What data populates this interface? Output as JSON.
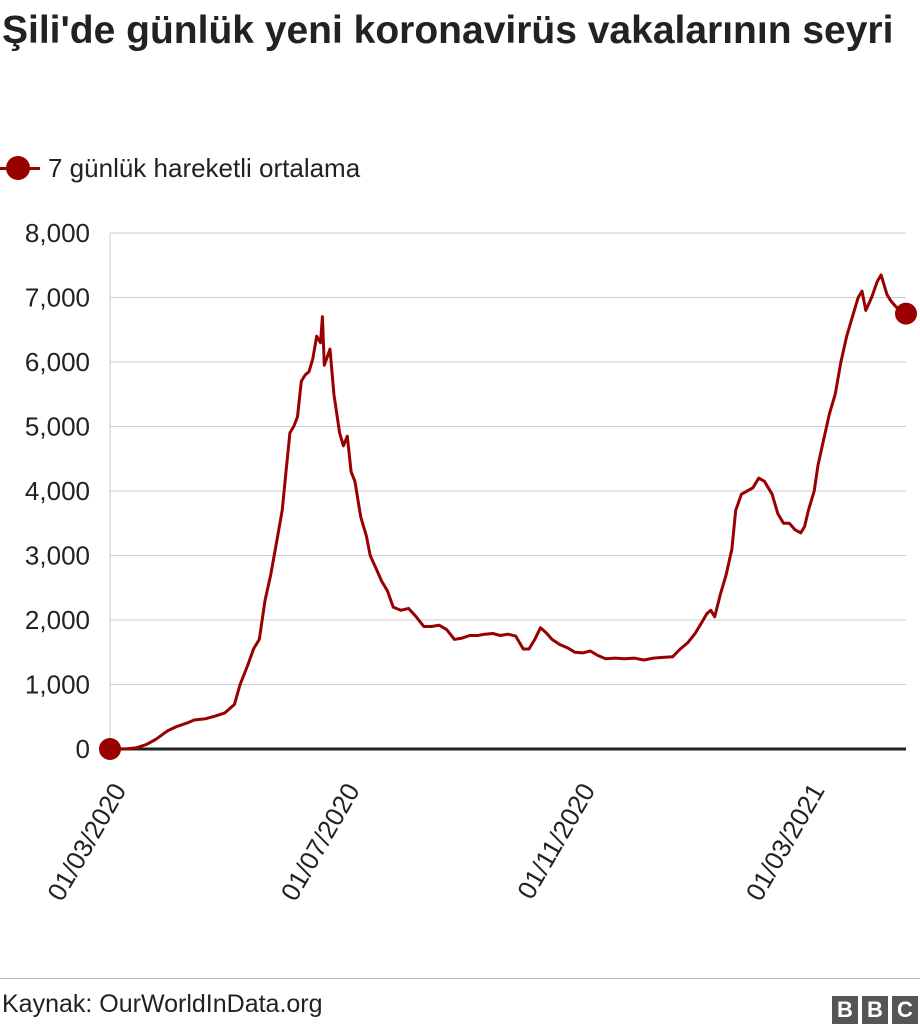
{
  "source": "Kaynak: OurWorldInData.org",
  "logo": [
    "B",
    "B",
    "C"
  ],
  "chart_data": {
    "type": "line",
    "title": "Şili'de günlük yeni koronavirüs vakalarının seyri",
    "subtitle": "",
    "xlabel": "",
    "ylabel": "",
    "ylim": [
      0,
      8000
    ],
    "yticks": [
      "0",
      "1,000",
      "2,000",
      "3,000",
      "4,000",
      "5,000",
      "6,000",
      "7,000",
      "8,000"
    ],
    "ytick_values": [
      0,
      1000,
      2000,
      3000,
      4000,
      5000,
      6000,
      7000,
      8000
    ],
    "xlim": [
      "2020-03-01",
      "2021-04-21"
    ],
    "xticks": [
      "01/03/2020",
      "01/07/2020",
      "01/11/2020",
      "01/03/2021"
    ],
    "xtick_dates": [
      "2020-03-01",
      "2020-07-01",
      "2020-11-01",
      "2021-03-01"
    ],
    "grid": true,
    "legend_position": "top-left",
    "series": [
      {
        "name": "7 günlük hareketli ortalama",
        "color": "#990000",
        "points": [
          [
            "2020-03-01",
            0
          ],
          [
            "2020-03-10",
            5
          ],
          [
            "2020-03-15",
            20
          ],
          [
            "2020-03-20",
            70
          ],
          [
            "2020-03-25",
            150
          ],
          [
            "2020-03-31",
            280
          ],
          [
            "2020-04-05",
            350
          ],
          [
            "2020-04-10",
            400
          ],
          [
            "2020-04-14",
            450
          ],
          [
            "2020-04-20",
            470
          ],
          [
            "2020-04-25",
            510
          ],
          [
            "2020-04-30",
            560
          ],
          [
            "2020-05-05",
            690
          ],
          [
            "2020-05-08",
            1000
          ],
          [
            "2020-05-12",
            1300
          ],
          [
            "2020-05-15",
            1550
          ],
          [
            "2020-05-18",
            1700
          ],
          [
            "2020-05-21",
            2300
          ],
          [
            "2020-05-24",
            2700
          ],
          [
            "2020-05-27",
            3200
          ],
          [
            "2020-05-30",
            3700
          ],
          [
            "2020-06-01",
            4300
          ],
          [
            "2020-06-03",
            4900
          ],
          [
            "2020-06-05",
            5000
          ],
          [
            "2020-06-07",
            5150
          ],
          [
            "2020-06-09",
            5700
          ],
          [
            "2020-06-11",
            5800
          ],
          [
            "2020-06-13",
            5850
          ],
          [
            "2020-06-15",
            6050
          ],
          [
            "2020-06-17",
            6400
          ],
          [
            "2020-06-19",
            6300
          ],
          [
            "2020-06-20",
            6700
          ],
          [
            "2020-06-21",
            5950
          ],
          [
            "2020-06-24",
            6200
          ],
          [
            "2020-06-26",
            5500
          ],
          [
            "2020-06-29",
            4900
          ],
          [
            "2020-07-01",
            4700
          ],
          [
            "2020-07-03",
            4850
          ],
          [
            "2020-07-05",
            4300
          ],
          [
            "2020-07-07",
            4150
          ],
          [
            "2020-07-10",
            3600
          ],
          [
            "2020-07-13",
            3300
          ],
          [
            "2020-07-15",
            3000
          ],
          [
            "2020-07-18",
            2800
          ],
          [
            "2020-07-21",
            2600
          ],
          [
            "2020-07-24",
            2450
          ],
          [
            "2020-07-27",
            2200
          ],
          [
            "2020-07-31",
            2150
          ],
          [
            "2020-08-04",
            2180
          ],
          [
            "2020-08-08",
            2050
          ],
          [
            "2020-08-12",
            1900
          ],
          [
            "2020-08-16",
            1900
          ],
          [
            "2020-08-20",
            1920
          ],
          [
            "2020-08-24",
            1850
          ],
          [
            "2020-08-28",
            1700
          ],
          [
            "2020-09-01",
            1720
          ],
          [
            "2020-09-05",
            1760
          ],
          [
            "2020-09-09",
            1760
          ],
          [
            "2020-09-13",
            1780
          ],
          [
            "2020-09-17",
            1790
          ],
          [
            "2020-09-21",
            1760
          ],
          [
            "2020-09-25",
            1780
          ],
          [
            "2020-09-29",
            1750
          ],
          [
            "2020-10-03",
            1550
          ],
          [
            "2020-10-06",
            1550
          ],
          [
            "2020-10-09",
            1700
          ],
          [
            "2020-10-12",
            1880
          ],
          [
            "2020-10-15",
            1800
          ],
          [
            "2020-10-18",
            1700
          ],
          [
            "2020-10-22",
            1620
          ],
          [
            "2020-10-26",
            1570
          ],
          [
            "2020-10-30",
            1500
          ],
          [
            "2020-11-03",
            1490
          ],
          [
            "2020-11-07",
            1520
          ],
          [
            "2020-11-11",
            1450
          ],
          [
            "2020-11-15",
            1400
          ],
          [
            "2020-11-20",
            1410
          ],
          [
            "2020-11-25",
            1400
          ],
          [
            "2020-11-30",
            1410
          ],
          [
            "2020-12-05",
            1380
          ],
          [
            "2020-12-10",
            1410
          ],
          [
            "2020-12-15",
            1420
          ],
          [
            "2020-12-20",
            1430
          ],
          [
            "2020-12-24",
            1550
          ],
          [
            "2020-12-28",
            1650
          ],
          [
            "2021-01-01",
            1800
          ],
          [
            "2021-01-04",
            1950
          ],
          [
            "2021-01-07",
            2100
          ],
          [
            "2021-01-09",
            2150
          ],
          [
            "2021-01-11",
            2050
          ],
          [
            "2021-01-14",
            2400
          ],
          [
            "2021-01-17",
            2700
          ],
          [
            "2021-01-20",
            3100
          ],
          [
            "2021-01-22",
            3700
          ],
          [
            "2021-01-25",
            3950
          ],
          [
            "2021-01-28",
            4000
          ],
          [
            "2021-01-31",
            4050
          ],
          [
            "2021-02-03",
            4200
          ],
          [
            "2021-02-06",
            4150
          ],
          [
            "2021-02-10",
            3950
          ],
          [
            "2021-02-13",
            3650
          ],
          [
            "2021-02-16",
            3500
          ],
          [
            "2021-02-19",
            3500
          ],
          [
            "2021-02-22",
            3400
          ],
          [
            "2021-02-25",
            3350
          ],
          [
            "2021-02-27",
            3450
          ],
          [
            "2021-03-01",
            3700
          ],
          [
            "2021-03-04",
            4000
          ],
          [
            "2021-03-06",
            4400
          ],
          [
            "2021-03-09",
            4800
          ],
          [
            "2021-03-12",
            5200
          ],
          [
            "2021-03-15",
            5500
          ],
          [
            "2021-03-18",
            6000
          ],
          [
            "2021-03-21",
            6400
          ],
          [
            "2021-03-24",
            6700
          ],
          [
            "2021-03-27",
            7000
          ],
          [
            "2021-03-29",
            7100
          ],
          [
            "2021-03-31",
            6800
          ],
          [
            "2021-04-03",
            7000
          ],
          [
            "2021-04-06",
            7250
          ],
          [
            "2021-04-08",
            7350
          ],
          [
            "2021-04-11",
            7050
          ],
          [
            "2021-04-13",
            6950
          ],
          [
            "2021-04-16",
            6850
          ],
          [
            "2021-04-19",
            6800
          ],
          [
            "2021-04-21",
            6750
          ]
        ]
      }
    ]
  }
}
